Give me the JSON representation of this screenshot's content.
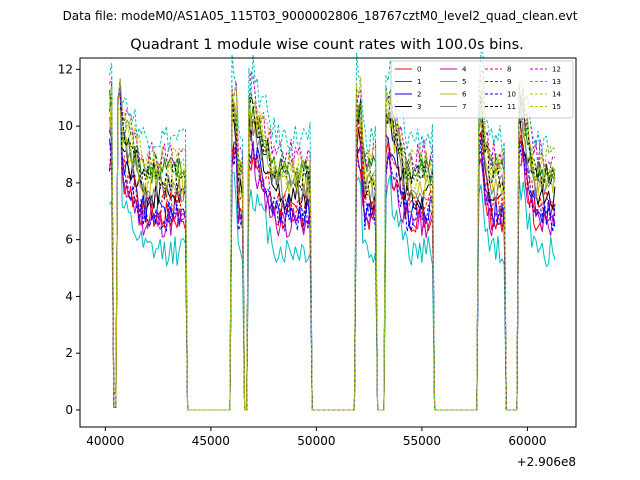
{
  "chart_data": {
    "type": "line",
    "suptitle": "Data file: modeM0/AS1A05_115T03_9000002806_18767cztM0_level2_quad_clean.evt",
    "title": "Quadrant 1 module wise count rates with 100.0s bins.",
    "xlabel": "",
    "ylabel": "",
    "x_offset_label": "+2.906e8",
    "xlim": [
      38800,
      62300
    ],
    "ylim": [
      -0.6,
      12.4
    ],
    "x_ticks": [
      40000,
      45000,
      50000,
      55000,
      60000
    ],
    "x_tick_labels": [
      "40000",
      "45000",
      "50000",
      "55000",
      "60000"
    ],
    "y_ticks": [
      0,
      2,
      4,
      6,
      8,
      10,
      12
    ],
    "y_tick_labels": [
      "0",
      "2",
      "4",
      "6",
      "8",
      "10",
      "12"
    ],
    "bin_seconds": 100,
    "legend_position": "top-right",
    "segments": [
      {
        "start": 40200,
        "end": 43800
      },
      {
        "start": 46000,
        "end": 46500
      },
      {
        "start": 46800,
        "end": 49700
      },
      {
        "start": 51900,
        "end": 52800
      },
      {
        "start": 53300,
        "end": 55500
      },
      {
        "start": 57700,
        "end": 58900
      },
      {
        "start": 59600,
        "end": 61300
      }
    ],
    "series": [
      {
        "name": "0",
        "color": "#ff0000",
        "dash": "solid",
        "level": 6.8
      },
      {
        "name": "1",
        "color": "#008000",
        "dash": "solid",
        "level": 8.4
      },
      {
        "name": "2",
        "color": "#0000ff",
        "dash": "solid",
        "level": 7.0
      },
      {
        "name": "3",
        "color": "#000000",
        "dash": "solid",
        "level": 7.6
      },
      {
        "name": "4",
        "color": "#bf00bf",
        "dash": "solid",
        "level": 6.6
      },
      {
        "name": "5",
        "color": "#00bfbf",
        "dash": "solid",
        "level": 5.6
      },
      {
        "name": "6",
        "color": "#bfbf00",
        "dash": "solid",
        "level": 8.0
      },
      {
        "name": "7",
        "color": "#808080",
        "dash": "solid",
        "level": 7.8
      },
      {
        "name": "8",
        "color": "#ff0000",
        "dash": "dashed",
        "level": 7.2
      },
      {
        "name": "9",
        "color": "#008000",
        "dash": "dashed",
        "level": 8.6
      },
      {
        "name": "10",
        "color": "#0000ff",
        "dash": "dashed",
        "level": 6.8
      },
      {
        "name": "11",
        "color": "#000000",
        "dash": "dashed",
        "level": 8.2
      },
      {
        "name": "12",
        "color": "#bf00bf",
        "dash": "dashed",
        "level": 9.0
      },
      {
        "name": "13",
        "color": "#00bfbf",
        "dash": "dashed",
        "level": 9.6
      },
      {
        "name": "14",
        "color": "#bfbf00",
        "dash": "dashed",
        "level": 8.8
      },
      {
        "name": "15",
        "color": "#bfbf00",
        "dash": "dashed",
        "level": 8.3
      }
    ]
  }
}
